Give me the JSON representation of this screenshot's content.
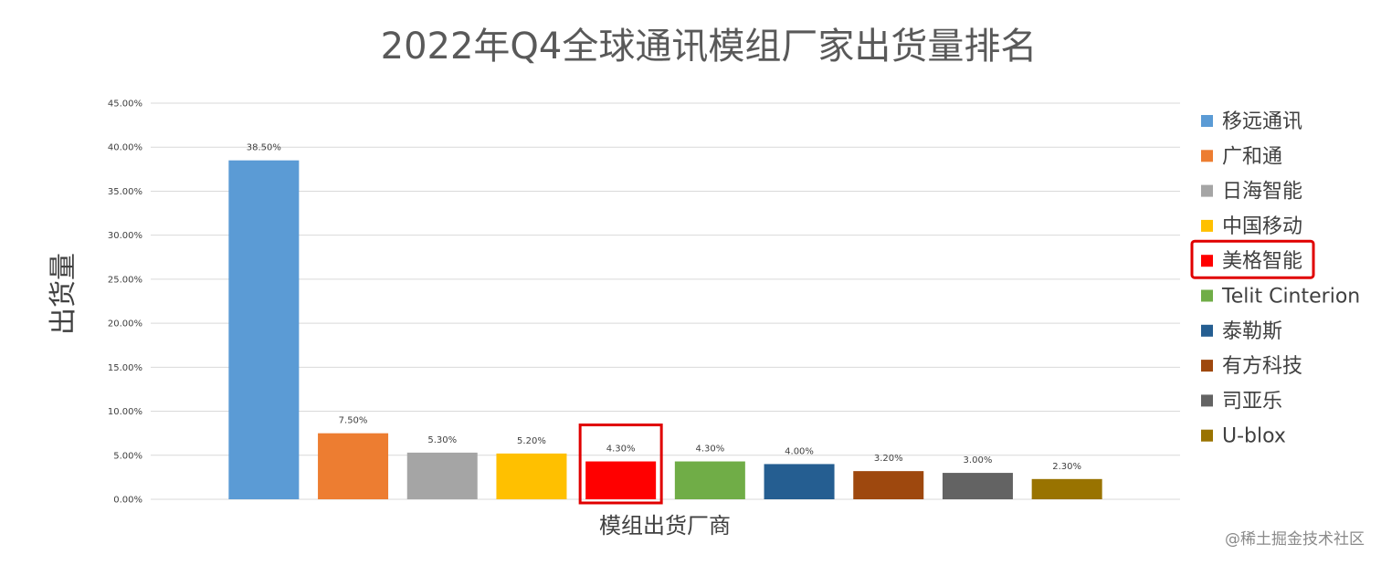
{
  "chart_data": {
    "type": "bar",
    "title": "2022年Q4全球通讯模组厂家出货量排名",
    "ylabel": "出货量",
    "xlabel": "模组出货厂商",
    "ylim": [
      0,
      45
    ],
    "yticks": [
      "0.00%",
      "5.00%",
      "10.00%",
      "15.00%",
      "20.00%",
      "25.00%",
      "30.00%",
      "35.00%",
      "40.00%",
      "45.00%"
    ],
    "grid": true,
    "legend_position": "right",
    "categories": [
      "移远通讯",
      "广和通",
      "日海智能",
      "中国移动",
      "美格智能",
      "Telit Cinterion",
      "泰勒斯",
      "有方科技",
      "司亚乐",
      "U-blox"
    ],
    "values": [
      38.5,
      7.5,
      5.3,
      5.2,
      4.3,
      4.3,
      4.0,
      3.2,
      3.0,
      2.3
    ],
    "data_labels": [
      "38.50%",
      "7.50%",
      "5.30%",
      "5.20%",
      "4.30%",
      "4.30%",
      "4.00%",
      "3.20%",
      "3.00%",
      "2.30%"
    ],
    "colors": [
      "#5b9bd5",
      "#ed7d31",
      "#a5a5a5",
      "#ffc000",
      "#ff0000",
      "#70ad47",
      "#255e91",
      "#9e480e",
      "#636363",
      "#997300"
    ],
    "highlight": {
      "category": "美格智能",
      "color": "#e00000"
    }
  },
  "watermark": "@稀土掘金技术社区"
}
